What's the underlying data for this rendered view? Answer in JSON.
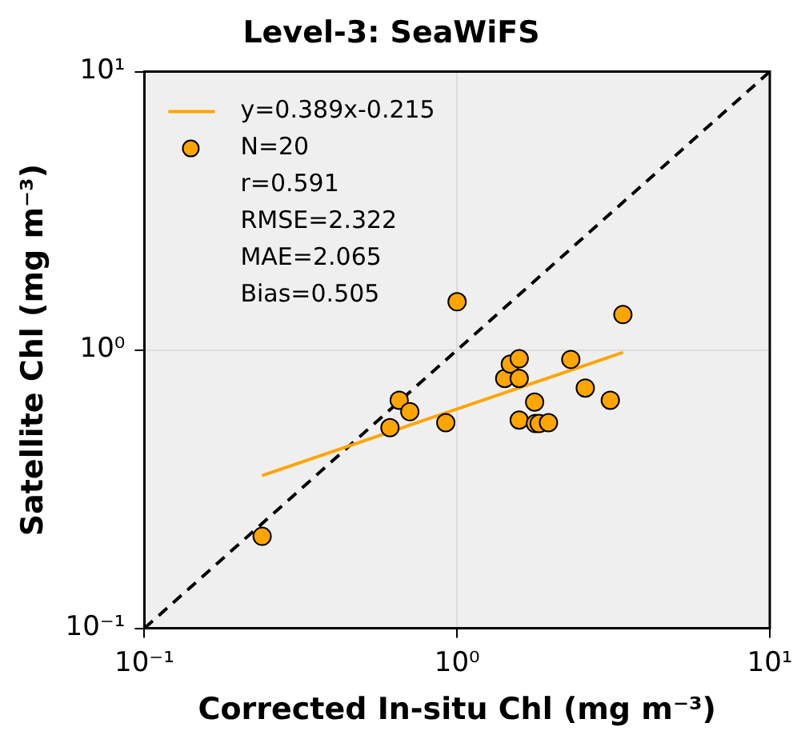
{
  "chart_data": {
    "type": "scatter",
    "title": "Level-3: SeaWiFS",
    "xlabel": "Corrected In-situ Chl (mg m⁻³)",
    "ylabel": "Satellite Chl (mg m⁻³)",
    "log": "xy",
    "grid": true,
    "legend": "top left",
    "marker": "circle",
    "xlim": [
      0.1,
      10
    ],
    "ylim": [
      0.1,
      10
    ],
    "xticks": [
      {
        "value": 0.1,
        "label": "10⁻¹"
      },
      {
        "value": 1,
        "label": "10⁰"
      },
      {
        "value": 10,
        "label": "10¹"
      }
    ],
    "yticks": [
      {
        "value": 0.1,
        "label": "10⁻¹"
      },
      {
        "value": 1,
        "label": "10⁰"
      },
      {
        "value": 10,
        "label": "10¹"
      }
    ],
    "series": [
      {
        "type": "line",
        "name": "y=0.389x-0.215",
        "color": "#ffa500",
        "x": [
          0.238,
          3.39
        ],
        "values": [
          0.354,
          0.98
        ],
        "line_style": "solid",
        "marker": "none"
      },
      {
        "name": "N=20",
        "color": "#ffa500",
        "x": [
          0.238,
          1.0,
          3.39,
          0.653,
          0.706,
          0.61,
          0.92,
          1.42,
          1.48,
          1.58,
          1.58,
          1.77,
          1.58,
          1.78,
          1.83,
          1.96,
          2.31,
          2.57,
          3.09
        ],
        "values": [
          0.214,
          1.49,
          1.34,
          0.66,
          0.6,
          0.526,
          0.548,
          0.79,
          0.89,
          0.93,
          0.79,
          0.65,
          0.56,
          0.544,
          0.544,
          0.548,
          0.925,
          0.73,
          0.66
        ]
      },
      {
        "type": "line",
        "color": "#000000",
        "x": [
          0.1,
          10
        ],
        "values": [
          0.1,
          10
        ],
        "line_style": "dashed",
        "marker": "none"
      }
    ],
    "annotations": [
      "r=0.591",
      "RMSE=2.322",
      "MAE=2.065",
      "Bias=0.505"
    ]
  }
}
